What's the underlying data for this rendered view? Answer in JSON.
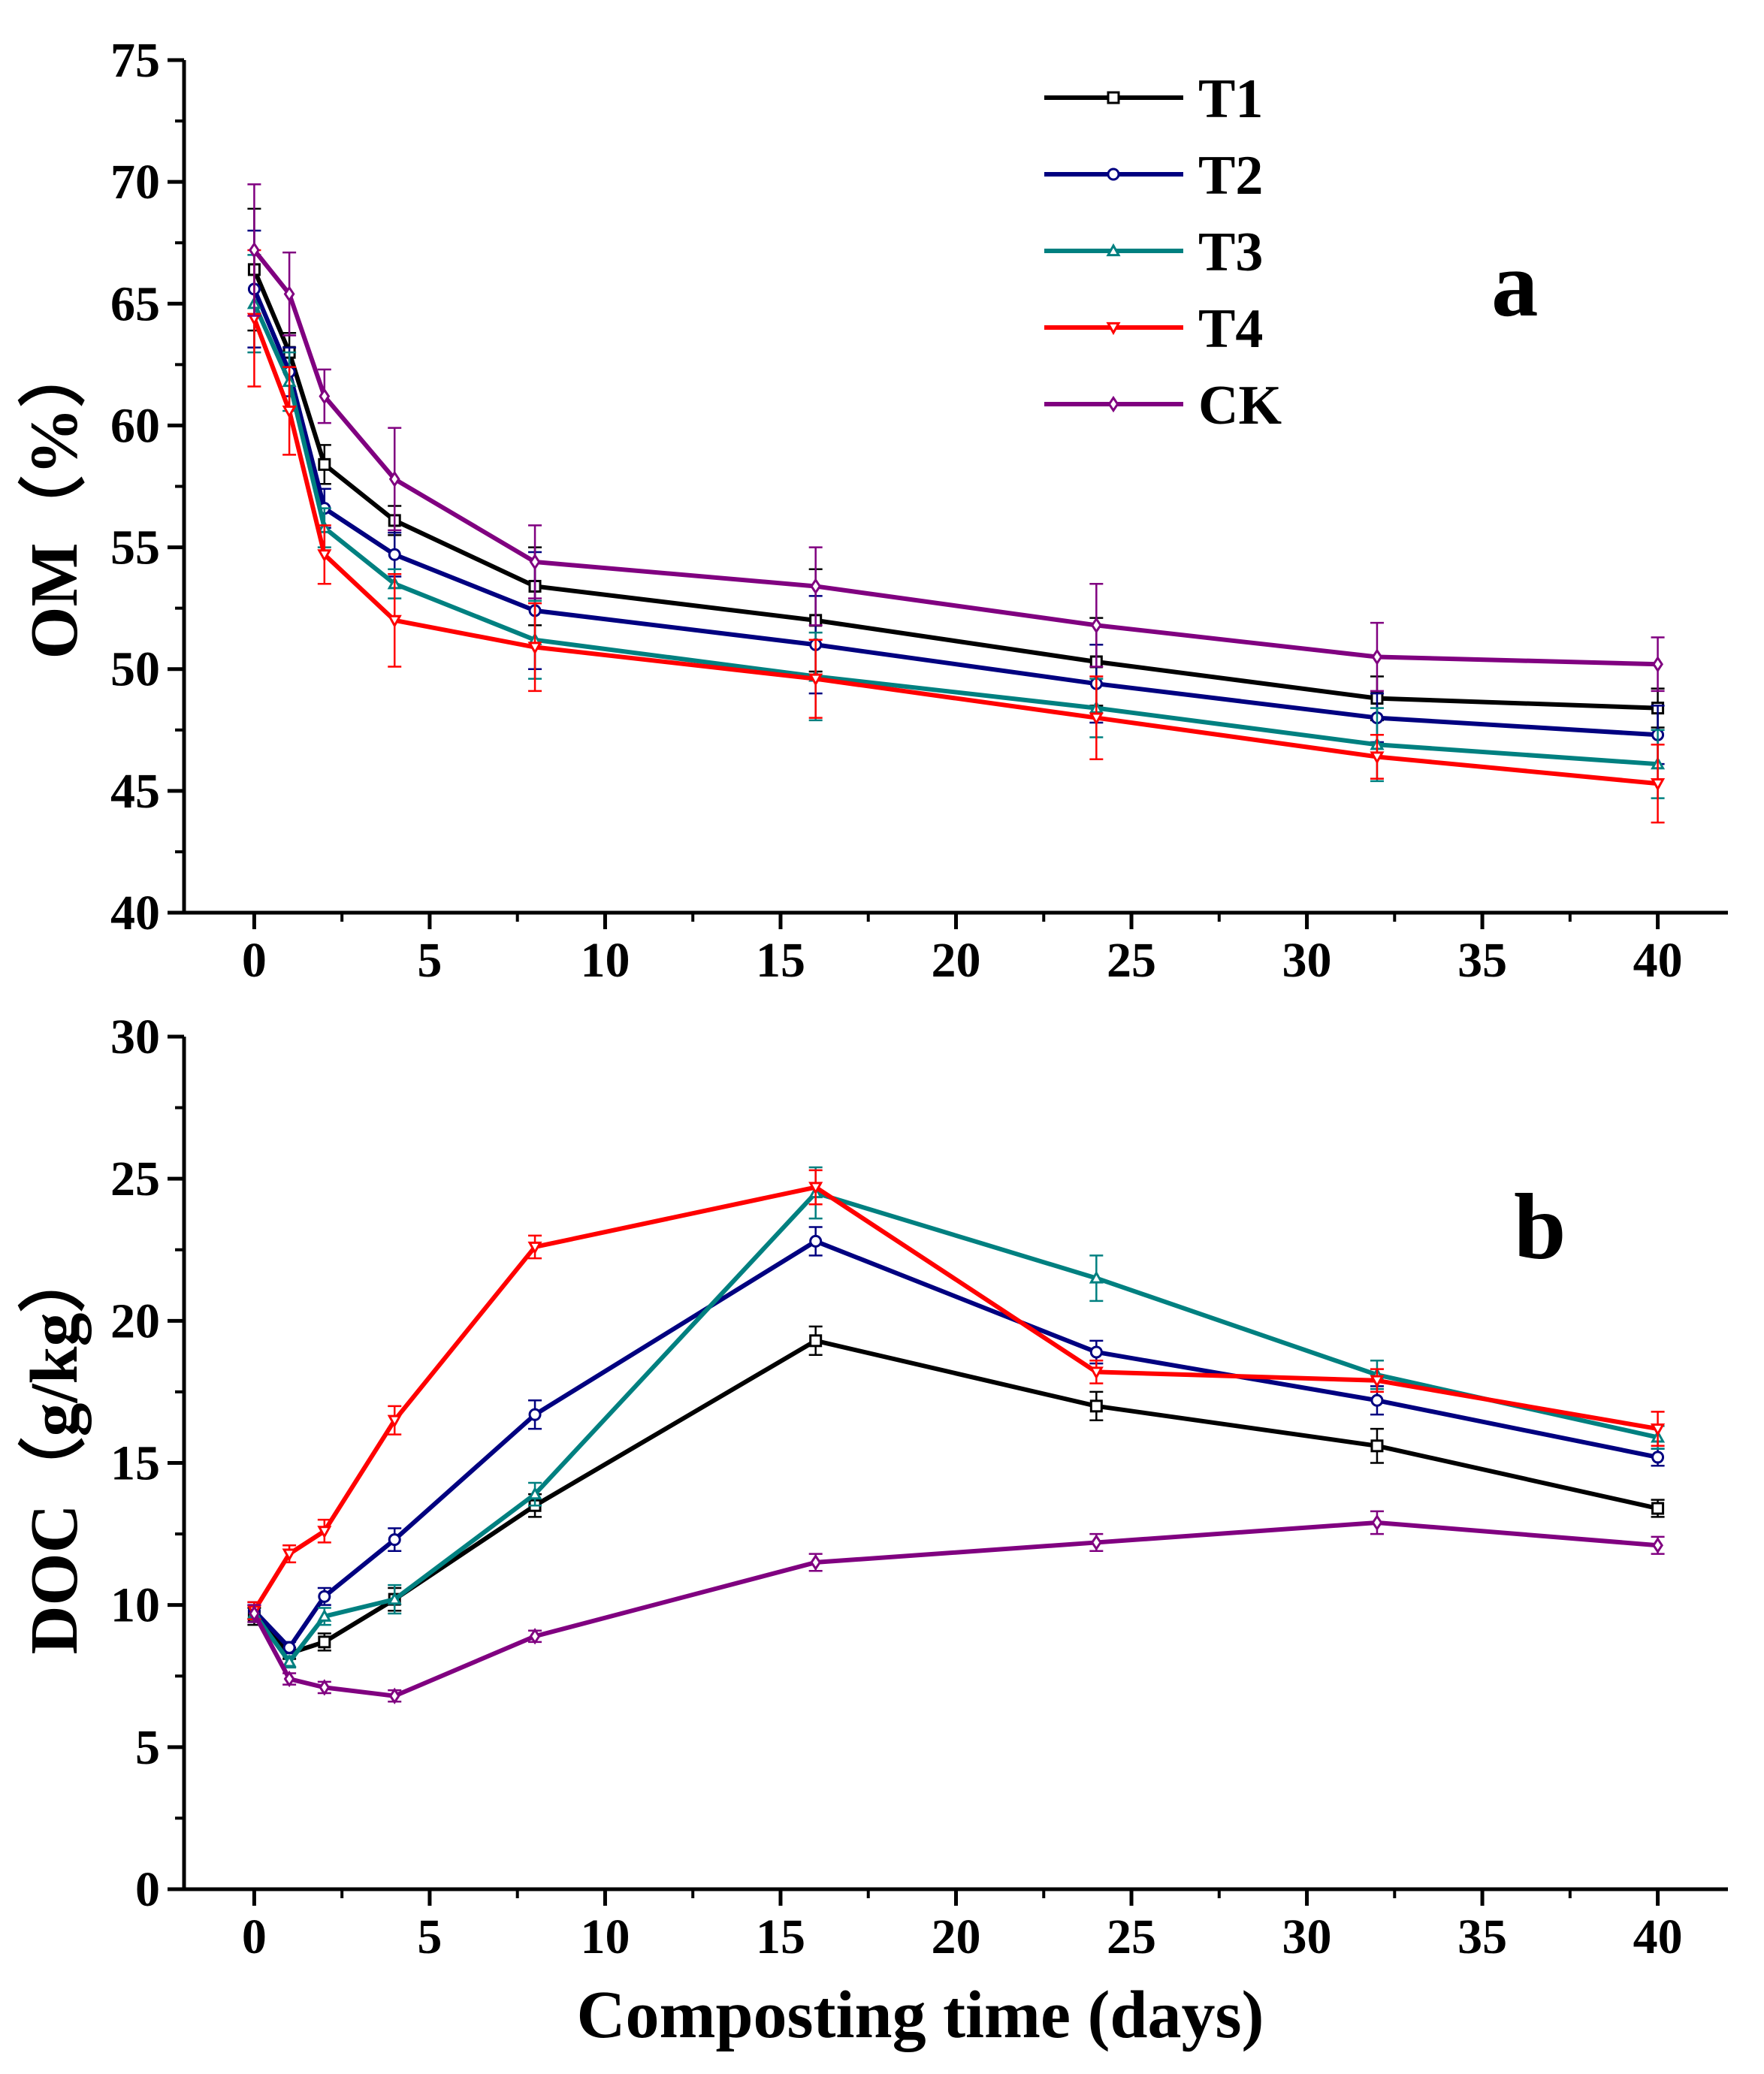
{
  "colors": {
    "T1": "#000000",
    "T2": "#000080",
    "T3": "#008080",
    "T4": "#ff0000",
    "CK": "#800080"
  },
  "legend": [
    {
      "name": "T1",
      "marker": "square"
    },
    {
      "name": "T2",
      "marker": "circle"
    },
    {
      "name": "T3",
      "marker": "triangle-up"
    },
    {
      "name": "T4",
      "marker": "triangle-down"
    },
    {
      "name": "CK",
      "marker": "diamond"
    }
  ],
  "chart_data": [
    {
      "type": "line",
      "panel_label": "a",
      "title": "",
      "xlabel": "",
      "ylabel": "OM（%）",
      "xlim": [
        -2,
        42
      ],
      "ylim": [
        40,
        75
      ],
      "xticks": [
        0,
        5,
        10,
        15,
        20,
        25,
        30,
        35,
        40
      ],
      "yticks": [
        40,
        45,
        50,
        55,
        60,
        65,
        70,
        75
      ],
      "x": [
        0,
        1,
        2,
        4,
        8,
        16,
        24,
        32,
        40
      ],
      "legend_position": "top-right",
      "series": [
        {
          "name": "T1",
          "values": [
            66.4,
            63.0,
            58.4,
            56.1,
            53.4,
            52.0,
            50.3,
            48.8,
            48.4
          ],
          "errors": [
            2.5,
            0.8,
            0.8,
            0.6,
            1.6,
            2.1,
            1.8,
            0.9,
            0.8
          ]
        },
        {
          "name": "T2",
          "values": [
            65.6,
            62.2,
            56.6,
            54.7,
            52.4,
            51.0,
            49.4,
            48.0,
            47.3
          ],
          "errors": [
            2.4,
            1.0,
            0.8,
            0.9,
            2.4,
            2.0,
            1.6,
            1.0,
            1.2
          ]
        },
        {
          "name": "T3",
          "values": [
            65.0,
            61.8,
            55.8,
            53.5,
            51.2,
            49.7,
            48.4,
            46.9,
            46.1
          ],
          "errors": [
            2.0,
            1.2,
            0.8,
            0.6,
            1.6,
            1.8,
            1.2,
            1.5,
            1.4
          ]
        },
        {
          "name": "T4",
          "values": [
            64.4,
            60.6,
            54.7,
            52.0,
            50.9,
            49.6,
            48.0,
            46.4,
            45.3
          ],
          "errors": [
            2.8,
            1.8,
            1.2,
            1.9,
            1.8,
            1.6,
            1.7,
            0.9,
            1.6
          ]
        },
        {
          "name": "CK",
          "values": [
            67.2,
            65.4,
            61.2,
            57.8,
            54.4,
            53.4,
            51.8,
            50.5,
            50.2
          ],
          "errors": [
            2.7,
            1.7,
            1.1,
            2.1,
            1.5,
            1.6,
            1.7,
            1.4,
            1.1
          ]
        }
      ]
    },
    {
      "type": "line",
      "panel_label": "b",
      "title": "",
      "xlabel": "Composting time (days)",
      "ylabel": "DOC（g/kg）",
      "xlim": [
        -2,
        42
      ],
      "ylim": [
        0,
        30
      ],
      "xticks": [
        0,
        5,
        10,
        15,
        20,
        25,
        30,
        35,
        40
      ],
      "yticks": [
        0,
        5,
        10,
        15,
        20,
        25,
        30
      ],
      "x": [
        0,
        1,
        2,
        4,
        8,
        16,
        24,
        32,
        40
      ],
      "series": [
        {
          "name": "T1",
          "values": [
            9.6,
            8.3,
            8.7,
            10.2,
            13.5,
            19.3,
            17.0,
            15.6,
            13.4
          ],
          "errors": [
            0.3,
            0.2,
            0.3,
            0.4,
            0.4,
            0.5,
            0.5,
            0.6,
            0.3
          ]
        },
        {
          "name": "T2",
          "values": [
            9.8,
            8.5,
            10.3,
            12.3,
            16.7,
            22.8,
            18.9,
            17.2,
            15.2
          ],
          "errors": [
            0.3,
            0.2,
            0.3,
            0.4,
            0.5,
            0.5,
            0.4,
            0.5,
            0.3
          ]
        },
        {
          "name": "T3",
          "values": [
            9.7,
            8.0,
            9.6,
            10.2,
            13.9,
            24.5,
            21.5,
            18.1,
            15.9
          ],
          "errors": [
            0.3,
            0.2,
            0.3,
            0.5,
            0.4,
            0.9,
            0.8,
            0.5,
            0.4
          ]
        },
        {
          "name": "T4",
          "values": [
            9.8,
            11.8,
            12.6,
            16.5,
            22.6,
            24.7,
            18.2,
            17.9,
            16.2
          ],
          "errors": [
            0.3,
            0.3,
            0.4,
            0.5,
            0.4,
            0.6,
            0.4,
            0.4,
            0.6
          ]
        },
        {
          "name": "CK",
          "values": [
            9.7,
            7.4,
            7.1,
            6.8,
            8.9,
            11.5,
            12.2,
            12.9,
            12.1
          ],
          "errors": [
            0.3,
            0.2,
            0.2,
            0.2,
            0.2,
            0.3,
            0.3,
            0.4,
            0.3
          ]
        }
      ]
    }
  ]
}
